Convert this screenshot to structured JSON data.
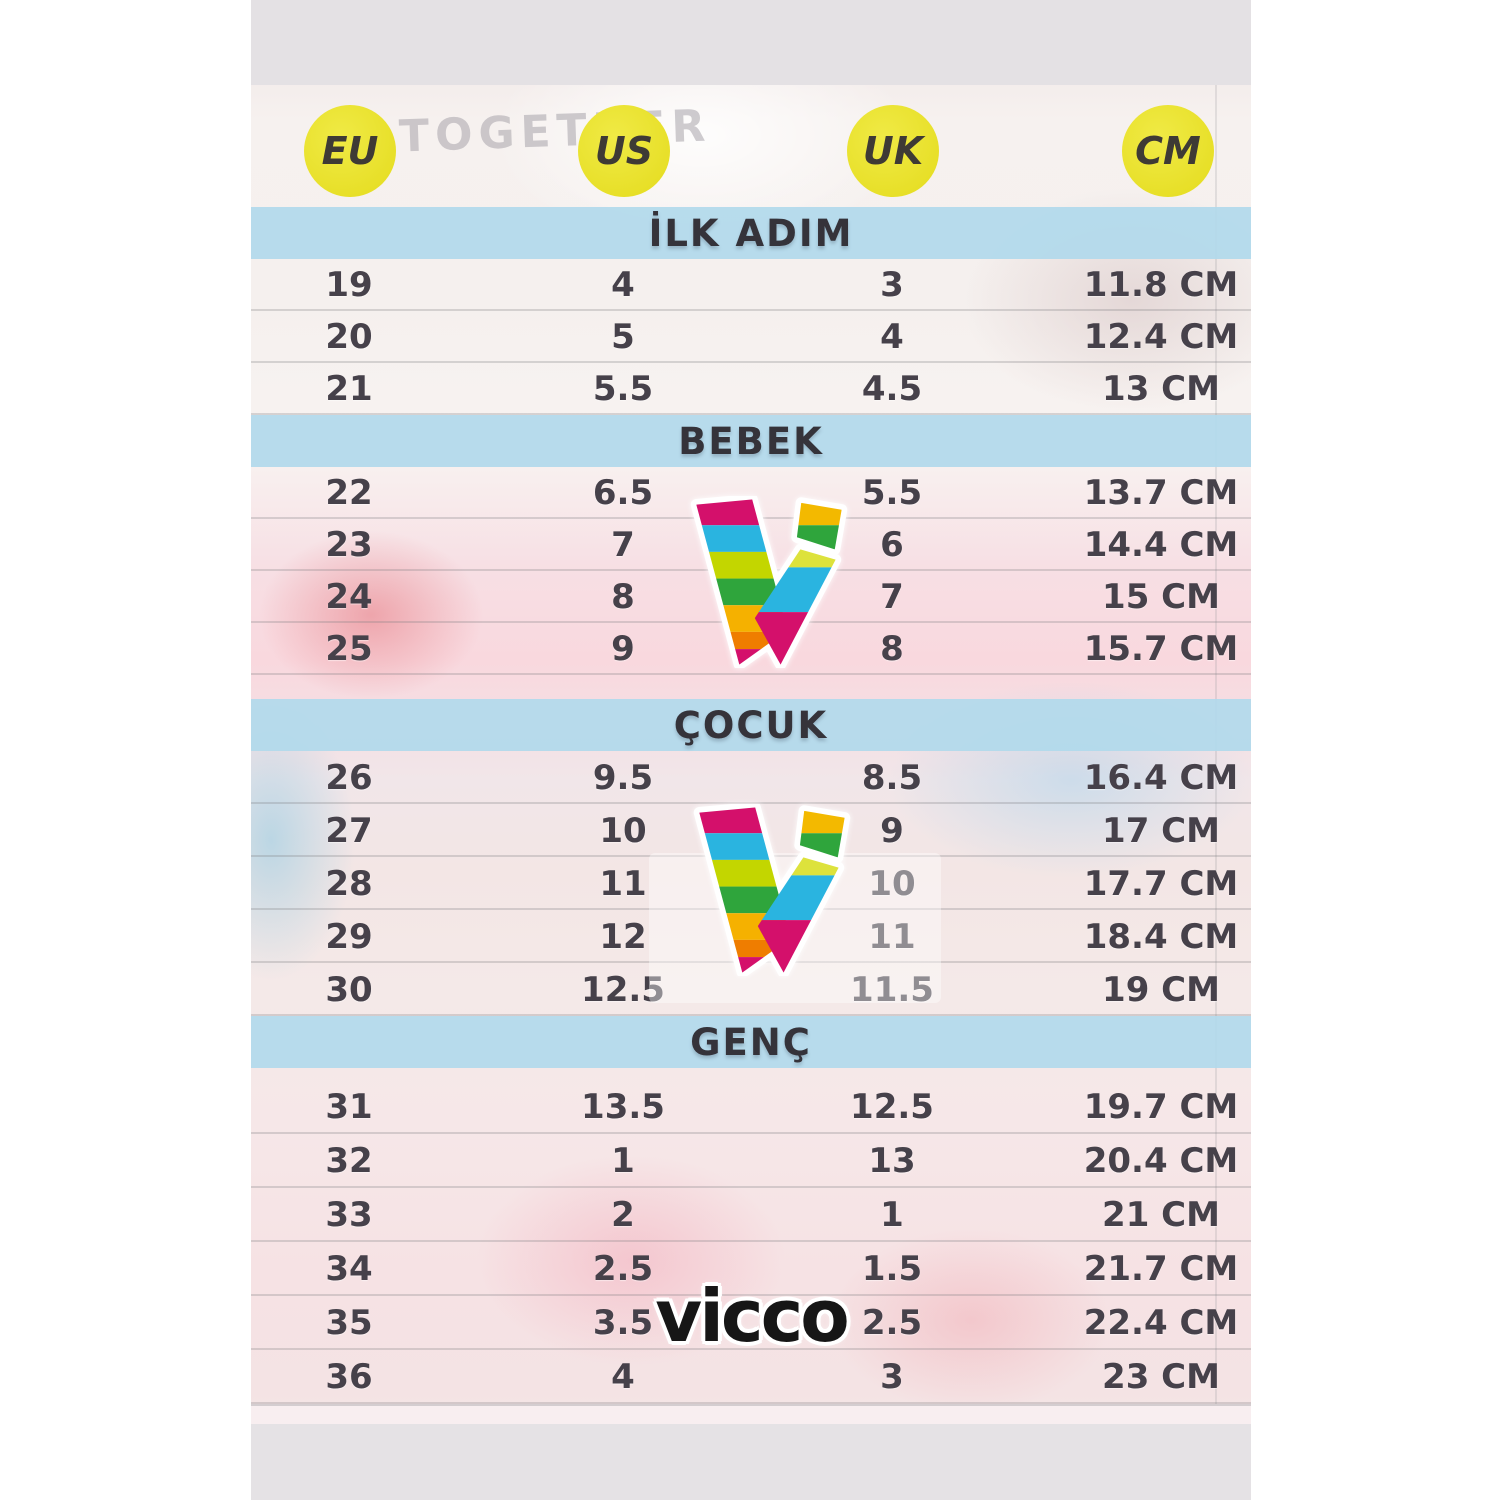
{
  "header": {
    "columns": [
      "EU",
      "US",
      "UK",
      "CM"
    ]
  },
  "background": {
    "shirt_text": "TOGETHER"
  },
  "branding": {
    "wordmark": "vicco",
    "v_logo_icon": "vicco-v-logo"
  },
  "colors": {
    "accent_yellow": "#eae332",
    "band_blue": "#bcdeee",
    "text_dark": "#46414a",
    "logo_magenta": "#d4106b",
    "logo_cyan": "#2ab4e0",
    "logo_lime": "#c3d600",
    "logo_green": "#2fa53c",
    "logo_amber": "#f5b100",
    "logo_orange": "#ef7d00"
  },
  "chart_data": {
    "type": "table",
    "columns": [
      "EU",
      "US",
      "UK",
      "CM"
    ],
    "sections": [
      {
        "label": "İLK ADIM",
        "rows": [
          [
            "19",
            "4",
            "3",
            "11.8 CM"
          ],
          [
            "20",
            "5",
            "4",
            "12.4 CM"
          ],
          [
            "21",
            "5.5",
            "4.5",
            "13 CM"
          ]
        ]
      },
      {
        "label": "BEBEK",
        "rows": [
          [
            "22",
            "6.5",
            "5.5",
            "13.7 CM"
          ],
          [
            "23",
            "7",
            "6",
            "14.4 CM"
          ],
          [
            "24",
            "8",
            "7",
            "15 CM"
          ],
          [
            "25",
            "9",
            "8",
            "15.7 CM"
          ]
        ]
      },
      {
        "label": "ÇOCUK",
        "rows": [
          [
            "26",
            "9.5",
            "8.5",
            "16.4 CM"
          ],
          [
            "27",
            "10",
            "9",
            "17 CM"
          ],
          [
            "28",
            "11",
            "10",
            "17.7 CM"
          ],
          [
            "29",
            "12",
            "11",
            "18.4 CM"
          ],
          [
            "30",
            "12.5",
            "11.5",
            "19 CM"
          ]
        ]
      },
      {
        "label": "GENÇ",
        "rows": [
          [
            "31",
            "13.5",
            "12.5",
            "19.7 CM"
          ],
          [
            "32",
            "1",
            "13",
            "20.4 CM"
          ],
          [
            "33",
            "2",
            "1",
            "21 CM"
          ],
          [
            "34",
            "2.5",
            "1.5",
            "21.7 CM"
          ],
          [
            "35",
            "3.5",
            "2.5",
            "22.4 CM"
          ],
          [
            "36",
            "4",
            "3",
            "23 CM"
          ]
        ]
      }
    ]
  }
}
